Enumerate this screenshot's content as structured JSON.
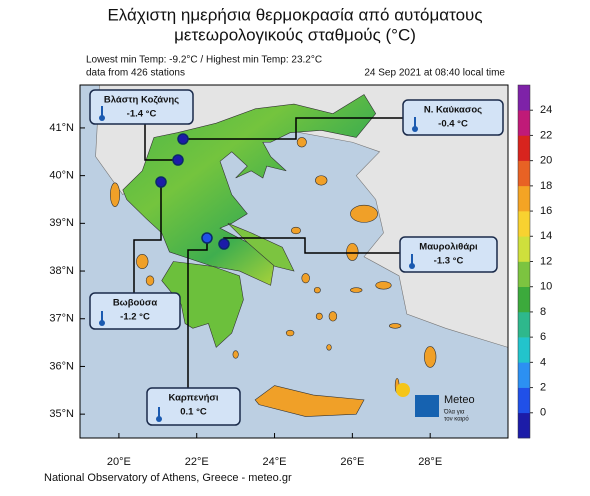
{
  "header": {
    "title_line1": "Ελάχιστη ημερήσια θερμοκρασία από αυτόματους",
    "title_line2": "μετεωρολογικούς σταθμούς (°C)",
    "extremes": "Lowest min Temp: -9.2°C / Highest min Temp: 23.2°C",
    "stations_count": "data from 426 stations",
    "timestamp": "24 Sep 2021 at 08:40 local time"
  },
  "map": {
    "xlim": [
      19,
      30
    ],
    "ylim": [
      34.5,
      41.9
    ],
    "xticks": [
      {
        "value": 20,
        "label": "20°E"
      },
      {
        "value": 22,
        "label": "22°E"
      },
      {
        "value": 24,
        "label": "24°E"
      },
      {
        "value": 26,
        "label": "26°E"
      },
      {
        "value": 28,
        "label": "28°E"
      }
    ],
    "yticks": [
      {
        "value": 41,
        "label": "41°N"
      },
      {
        "value": 40,
        "label": "40°N"
      },
      {
        "value": 39,
        "label": "39°N"
      },
      {
        "value": 38,
        "label": "38°N"
      },
      {
        "value": 37,
        "label": "37°N"
      },
      {
        "value": 36,
        "label": "36°N"
      },
      {
        "value": 35,
        "label": "35°N"
      }
    ]
  },
  "colorbar": {
    "lim": [
      -2,
      26
    ],
    "ticks": [
      0,
      2,
      4,
      6,
      8,
      10,
      12,
      14,
      16,
      18,
      20,
      22,
      24
    ],
    "colors": [
      "#1c1ca8",
      "#2050e8",
      "#2c90f2",
      "#22c4cc",
      "#2eb88c",
      "#3caa3c",
      "#7cc440",
      "#cfe03c",
      "#f8d230",
      "#f4a424",
      "#e86224",
      "#d8241e",
      "#c01a78",
      "#7e22a8"
    ]
  },
  "stations": [
    {
      "name": "Βλάστη Κοζάνης",
      "temp": -1.4,
      "temp_label": "-1.4 °C"
    },
    {
      "name": "Ν. Καύκασος",
      "temp": -0.4,
      "temp_label": "-0.4 °C"
    },
    {
      "name": "Μαυρολιθάρι",
      "temp": -1.3,
      "temp_label": "-1.3 °C"
    },
    {
      "name": "Βωβούσα",
      "temp": -1.2,
      "temp_label": "-1.2 °C"
    },
    {
      "name": "Καρπενήσι",
      "temp": 0.1,
      "temp_label": "0.1 °C"
    }
  ],
  "logo": {
    "name": "Meteo",
    "tagline_line1": "Όλα για",
    "tagline_line2": "τον καιρό"
  },
  "footer": "National Observatory of Athens, Greece - meteo.gr"
}
